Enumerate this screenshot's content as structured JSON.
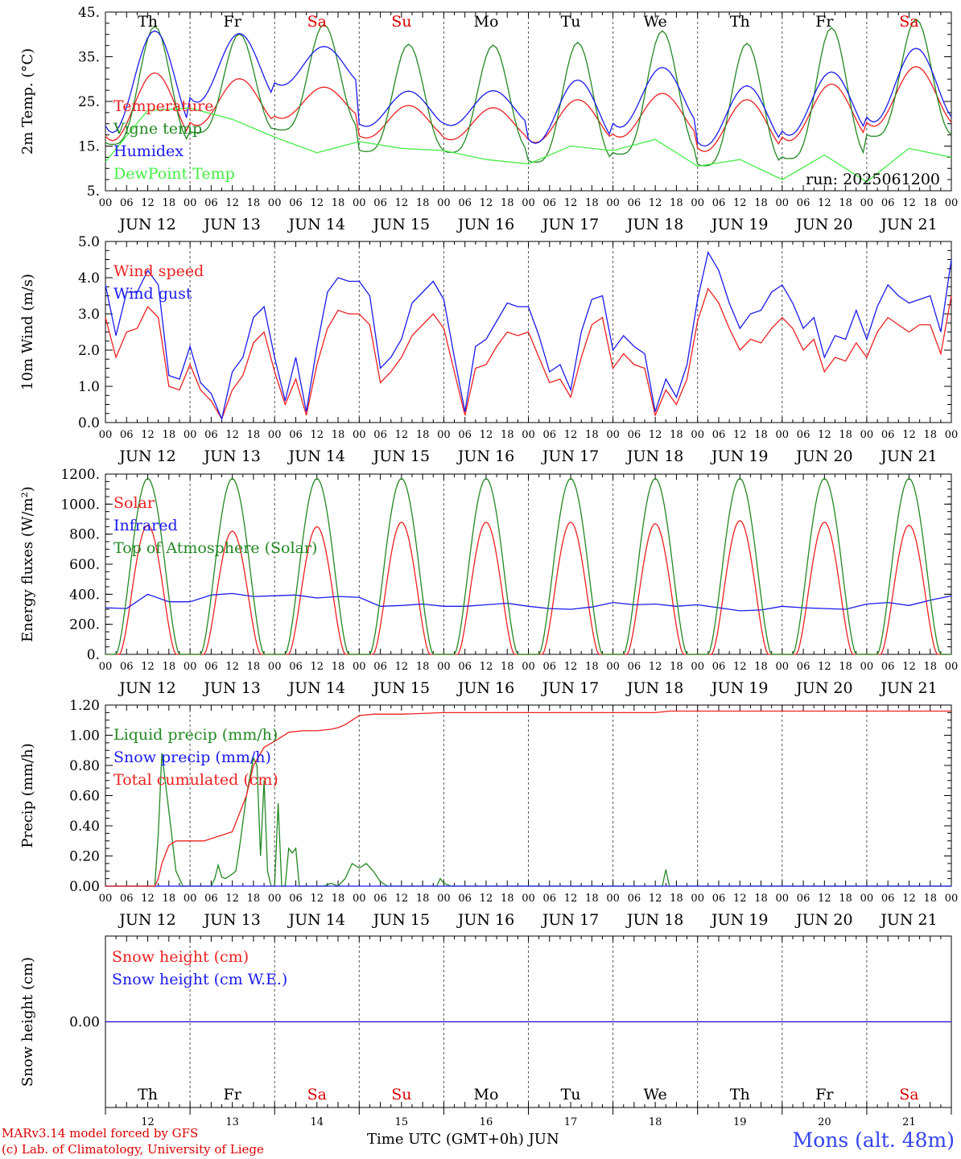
{
  "days_short": [
    "Th",
    "Fr",
    "Sa",
    "Su",
    "Mo",
    "Tu",
    "We",
    "Th",
    "Fr",
    "Sa"
  ],
  "day_colors": [
    "#000000",
    "#000000",
    "#dd0000",
    "#dd0000",
    "#000000",
    "#000000",
    "#000000",
    "#000000",
    "#000000",
    "#dd0000"
  ],
  "date_labels": [
    "JUN 12",
    "JUN 13",
    "JUN 14",
    "JUN 15",
    "JUN 16",
    "JUN 17",
    "JUN 18",
    "JUN 19",
    "JUN 20",
    "JUN 21"
  ],
  "hour_labels": [
    "00",
    "06",
    "12",
    "18"
  ],
  "bottom_day_numbers": [
    "12",
    "13",
    "14",
    "15",
    "16",
    "17",
    "18",
    "19",
    "20",
    "21"
  ],
  "run_label": "run: 2025061200",
  "footer": {
    "model": "MARv3.14 model forced by GFS",
    "credit": "(c) Lab. of Climatology, University of Liege",
    "time_axis": "Time UTC (GMT+0h) JUN",
    "site": "Mons (alt. 48m)"
  },
  "chart_data": [
    {
      "id": "temp",
      "type": "line",
      "ylabel": "2m Temp. (°C)",
      "ylim": [
        5,
        45
      ],
      "yticks": [
        "5.",
        "15.",
        "25.",
        "35.",
        "45."
      ],
      "x_unit": "hours since JUN 12 00 UTC",
      "x_range": [
        0,
        240
      ],
      "series": [
        {
          "name": "Temperature",
          "color": "#ee2020",
          "kind": "diurnal",
          "min": [
            16.2,
            19.6,
            21.2,
            16.8,
            16.4,
            15.8,
            17.0,
            13.8,
            16.2,
            19.4
          ],
          "max": [
            31.4,
            30.1,
            28.2,
            24.1,
            23.6,
            25.4,
            26.8,
            25.4,
            28.9,
            32.8
          ]
        },
        {
          "name": "Vigne temp",
          "color": "#228822",
          "kind": "diurnal",
          "sharp": true,
          "min": [
            15.4,
            18.0,
            18.6,
            13.8,
            13.6,
            11.4,
            13.2,
            10.6,
            12.2,
            17.2
          ],
          "max": [
            41.8,
            40.1,
            42.2,
            37.8,
            37.6,
            38.2,
            40.8,
            38.0,
            41.5,
            43.4
          ]
        },
        {
          "name": "Humidex",
          "color": "#1a1aee",
          "kind": "diurnal",
          "min": [
            18.0,
            24.8,
            28.6,
            19.4,
            19.6,
            15.6,
            19.2,
            15.0,
            17.4,
            20.4
          ],
          "max": [
            40.8,
            40.2,
            37.3,
            27.3,
            27.4,
            29.8,
            32.6,
            28.5,
            31.6,
            36.9
          ]
        },
        {
          "name": "DewPoint Temp",
          "color": "#44ee44",
          "kind": "pts",
          "x": [
            0,
            12,
            24,
            36,
            48,
            60,
            72,
            84,
            96,
            108,
            120,
            132,
            144,
            156,
            168,
            180,
            192,
            204,
            216,
            228,
            240
          ],
          "y": [
            11.5,
            23.0,
            23.5,
            21.0,
            17.0,
            13.5,
            16.0,
            14.5,
            14.0,
            12.0,
            11.0,
            15.0,
            14.0,
            16.5,
            10.5,
            12.0,
            7.5,
            13.0,
            7.0,
            14.5,
            12.5
          ]
        }
      ]
    },
    {
      "id": "wind",
      "type": "line",
      "ylabel": "10m Wind (m/s)",
      "ylim": [
        0,
        5
      ],
      "yticks": [
        "0.0",
        "1.0",
        "2.0",
        "3.0",
        "4.0",
        "5.0"
      ],
      "x_unit": "hours since JUN 12 00 UTC",
      "x_range": [
        0,
        240
      ],
      "series": [
        {
          "name": "Wind speed",
          "color": "#ee2020",
          "x": [
            0,
            3,
            6,
            9,
            12,
            15,
            18,
            21,
            24,
            27,
            30,
            33,
            36,
            39,
            42,
            45,
            48,
            51,
            54,
            57,
            60,
            63,
            66,
            69,
            72,
            75,
            78,
            81,
            84,
            87,
            90,
            93,
            96,
            99,
            102,
            105,
            108,
            111,
            114,
            117,
            120,
            123,
            126,
            129,
            132,
            135,
            138,
            141,
            144,
            147,
            150,
            153,
            156,
            159,
            162,
            165,
            168,
            171,
            174,
            177,
            180,
            183,
            186,
            189,
            192,
            195,
            198,
            201,
            204,
            207,
            210,
            213,
            216,
            219,
            222,
            225,
            228,
            231,
            234,
            237,
            240
          ],
          "y": [
            2.9,
            1.8,
            2.5,
            2.6,
            3.2,
            2.9,
            1.0,
            0.9,
            1.6,
            0.9,
            0.6,
            0.1,
            0.9,
            1.3,
            2.2,
            2.5,
            1.4,
            0.5,
            1.2,
            0.2,
            1.6,
            2.6,
            3.1,
            3.0,
            3.0,
            2.7,
            1.1,
            1.4,
            1.8,
            2.4,
            2.7,
            3.0,
            2.6,
            1.4,
            0.2,
            1.5,
            1.6,
            2.1,
            2.5,
            2.4,
            2.5,
            1.8,
            1.1,
            1.2,
            0.7,
            1.8,
            2.7,
            2.9,
            1.5,
            1.9,
            1.6,
            1.5,
            0.2,
            0.9,
            0.5,
            1.2,
            2.8,
            3.7,
            3.3,
            2.6,
            2.0,
            2.3,
            2.2,
            2.6,
            2.9,
            2.6,
            2.0,
            2.3,
            1.4,
            1.8,
            1.7,
            2.2,
            1.8,
            2.5,
            2.9,
            2.7,
            2.5,
            2.7,
            2.7,
            1.9,
            3.5
          ]
        },
        {
          "name": "Wind gust",
          "color": "#1a1aee",
          "x": [
            0,
            3,
            6,
            9,
            12,
            15,
            18,
            21,
            24,
            27,
            30,
            33,
            36,
            39,
            42,
            45,
            48,
            51,
            54,
            57,
            60,
            63,
            66,
            69,
            72,
            75,
            78,
            81,
            84,
            87,
            90,
            93,
            96,
            99,
            102,
            105,
            108,
            111,
            114,
            117,
            120,
            123,
            126,
            129,
            132,
            135,
            138,
            141,
            144,
            147,
            150,
            153,
            156,
            159,
            162,
            165,
            168,
            171,
            174,
            177,
            180,
            183,
            186,
            189,
            192,
            195,
            198,
            201,
            204,
            207,
            210,
            213,
            216,
            219,
            222,
            225,
            228,
            231,
            234,
            237,
            240
          ],
          "y": [
            3.8,
            2.4,
            3.6,
            3.6,
            4.2,
            3.8,
            1.3,
            1.2,
            2.1,
            1.1,
            0.8,
            0.1,
            1.4,
            1.8,
            2.9,
            3.2,
            1.8,
            0.6,
            1.8,
            0.3,
            2.1,
            3.6,
            4.0,
            3.9,
            3.9,
            3.5,
            1.5,
            1.8,
            2.3,
            3.3,
            3.6,
            3.9,
            3.4,
            1.8,
            0.3,
            2.1,
            2.3,
            2.8,
            3.3,
            3.2,
            3.2,
            2.4,
            1.4,
            1.6,
            0.9,
            2.5,
            3.4,
            3.5,
            2.0,
            2.4,
            2.1,
            1.9,
            0.3,
            1.2,
            0.7,
            1.6,
            3.4,
            4.7,
            4.2,
            3.3,
            2.6,
            3.0,
            3.1,
            3.6,
            3.8,
            3.3,
            2.6,
            2.9,
            1.8,
            2.4,
            2.3,
            3.1,
            2.3,
            3.2,
            3.8,
            3.5,
            3.3,
            3.4,
            3.5,
            2.5,
            4.5
          ]
        }
      ]
    },
    {
      "id": "flux",
      "type": "line",
      "ylabel": "Energy fluxes (W/m²)",
      "ylim": [
        0,
        1200
      ],
      "yticks": [
        "0.",
        "200.",
        "400.",
        "600.",
        "800.",
        "1000.",
        "1200."
      ],
      "x_unit": "hours since JUN 12 00 UTC",
      "x_range": [
        0,
        240
      ],
      "series": [
        {
          "name": "Solar",
          "color": "#ee2020",
          "kind": "bell",
          "halfwidth": 8,
          "peaks": [
            860,
            820,
            850,
            880,
            880,
            880,
            870,
            890,
            880,
            860
          ]
        },
        {
          "name": "Infrared",
          "color": "#1a1aee",
          "x": [
            0,
            6,
            12,
            18,
            24,
            30,
            36,
            42,
            48,
            54,
            60,
            66,
            72,
            78,
            84,
            90,
            96,
            102,
            108,
            114,
            120,
            126,
            132,
            138,
            144,
            150,
            156,
            162,
            168,
            174,
            180,
            186,
            192,
            198,
            204,
            210,
            216,
            222,
            228,
            234,
            240
          ],
          "y": [
            310,
            305,
            400,
            350,
            350,
            395,
            405,
            385,
            390,
            395,
            375,
            385,
            380,
            320,
            325,
            335,
            320,
            320,
            330,
            340,
            320,
            305,
            300,
            315,
            345,
            330,
            335,
            320,
            330,
            310,
            290,
            295,
            320,
            310,
            305,
            300,
            335,
            345,
            325,
            360,
            390
          ]
        },
        {
          "name": "Top of Atmosphere (Solar)",
          "color": "#228822",
          "kind": "bell",
          "halfwidth": 9,
          "peaks": [
            1170,
            1170,
            1170,
            1170,
            1170,
            1170,
            1170,
            1170,
            1170,
            1170
          ]
        }
      ]
    },
    {
      "id": "precip",
      "type": "line",
      "ylabel": "Precip (mm/h)",
      "ylim": [
        0,
        1.2
      ],
      "yticks": [
        "0.00",
        "0.20",
        "0.40",
        "0.60",
        "0.80",
        "1.00",
        "1.20"
      ],
      "x_unit": "hours since JUN 12 00 UTC",
      "x_range": [
        0,
        240
      ],
      "series": [
        {
          "name": "Liquid precip (mm/h)",
          "color": "#228822",
          "x": [
            0,
            14,
            15,
            16,
            18,
            20,
            22,
            30,
            31,
            32,
            33,
            34,
            36,
            37,
            38,
            40,
            42,
            43,
            44,
            45,
            46,
            47,
            48,
            49,
            50,
            51,
            52,
            53,
            54,
            55,
            58,
            60,
            62,
            64,
            66,
            68,
            70,
            72,
            74,
            76,
            78,
            80,
            82,
            94,
            95,
            96,
            98,
            100,
            158,
            159,
            160,
            161,
            240
          ],
          "y": [
            0,
            0,
            0.35,
            0.88,
            0.5,
            0.1,
            0,
            0,
            0.05,
            0.14,
            0.06,
            0.05,
            0.08,
            0.1,
            0.25,
            0.6,
            0.85,
            0.8,
            0.2,
            0.7,
            0.1,
            0,
            0,
            0.55,
            0,
            0,
            0.25,
            0.22,
            0.25,
            0,
            0,
            0,
            0,
            0.02,
            0,
            0.05,
            0.15,
            0.12,
            0.15,
            0.1,
            0.03,
            0,
            0,
            0,
            0.05,
            0.02,
            0,
            0,
            0,
            0.11,
            0,
            0,
            0
          ]
        },
        {
          "name": "Snow precip (mm/h)",
          "color": "#1a1aee",
          "x": [
            0,
            240
          ],
          "y": [
            0,
            0
          ]
        },
        {
          "name": "Total cumulated (cm)",
          "color": "#ee2020",
          "x": [
            0,
            14,
            15,
            16,
            18,
            20,
            24,
            28,
            32,
            36,
            40,
            42,
            45,
            48,
            50,
            52,
            56,
            60,
            64,
            66,
            68,
            70,
            72,
            76,
            80,
            84,
            96,
            120,
            156,
            160,
            168,
            200,
            240
          ],
          "y": [
            0,
            0,
            0.05,
            0.15,
            0.27,
            0.3,
            0.3,
            0.3,
            0.33,
            0.36,
            0.6,
            0.8,
            0.92,
            0.96,
            0.99,
            1.02,
            1.03,
            1.03,
            1.04,
            1.05,
            1.07,
            1.1,
            1.13,
            1.14,
            1.14,
            1.14,
            1.15,
            1.15,
            1.15,
            1.16,
            1.16,
            1.16,
            1.16
          ]
        }
      ]
    },
    {
      "id": "snow",
      "type": "line",
      "ylabel": "Snow height (cm)",
      "ylim": [
        -1,
        1
      ],
      "yticks": [
        "0.00"
      ],
      "x_unit": "hours since JUN 12 00 UTC",
      "x_range": [
        0,
        240
      ],
      "series": [
        {
          "name": "Snow height (cm)",
          "color": "#ee2020",
          "x": [
            0,
            240
          ],
          "y": [
            0,
            0
          ]
        },
        {
          "name": "Snow height (cm W.E.)",
          "color": "#1a1aee",
          "x": [
            0,
            240
          ],
          "y": [
            0,
            0
          ]
        }
      ]
    }
  ]
}
